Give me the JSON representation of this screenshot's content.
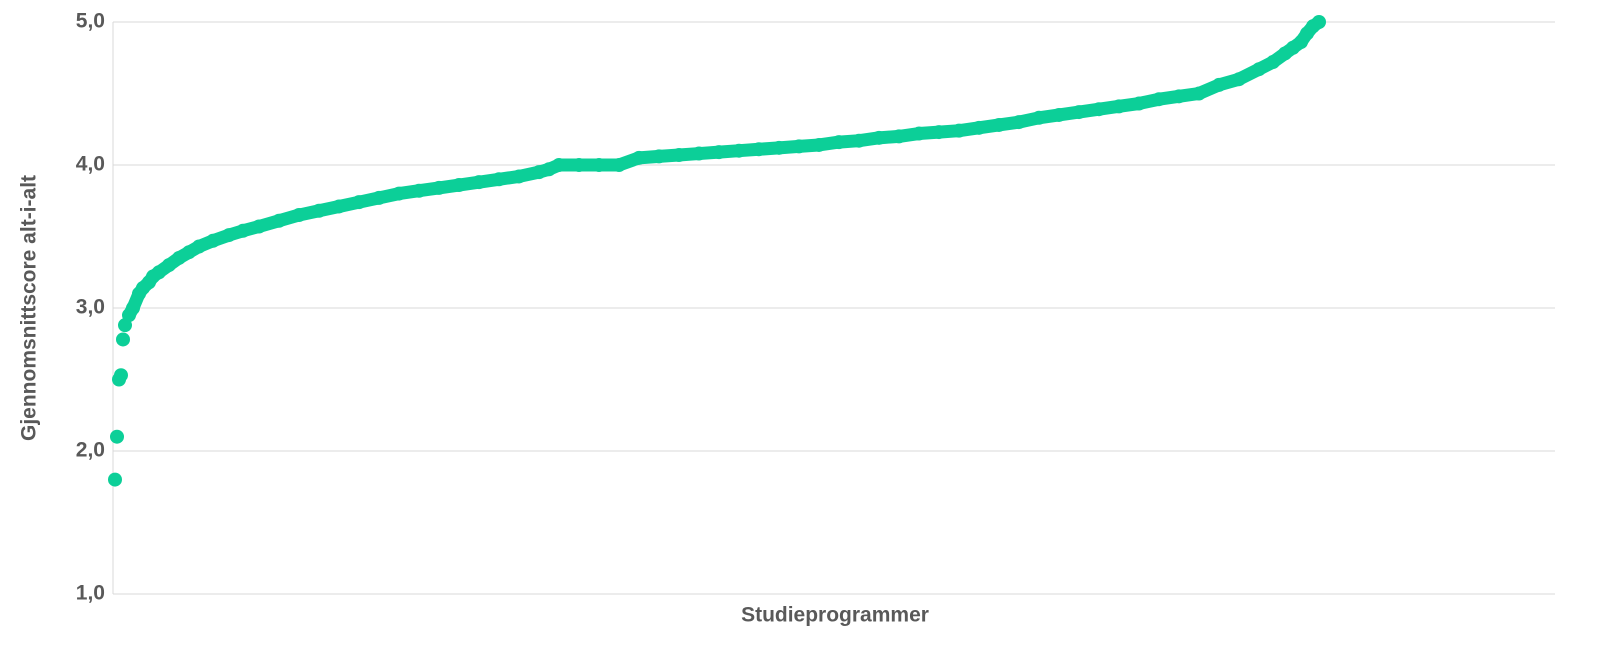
{
  "chart_data": {
    "type": "scatter",
    "x_label": "Studieprogrammer",
    "y_label": "Gjennomsnittscore alt-i-alt",
    "color": "#0ccf98",
    "grid": true,
    "xlim": [
      0,
      721
    ],
    "ylim": [
      1,
      5
    ],
    "yticks": [
      {
        "value": 1,
        "label": "1,0"
      },
      {
        "value": 2,
        "label": "2,0"
      },
      {
        "value": 3,
        "label": "3,0"
      },
      {
        "value": 4,
        "label": "4,0"
      },
      {
        "value": 5,
        "label": "5,0"
      }
    ],
    "x": [
      1,
      2,
      3,
      4,
      5,
      6,
      8,
      10,
      13,
      15,
      18,
      20,
      23,
      28,
      33,
      38,
      43,
      50,
      58,
      65,
      73,
      83,
      93,
      103,
      113,
      123,
      133,
      143,
      153,
      163,
      173,
      183,
      193,
      203,
      213,
      218,
      223,
      233,
      243,
      253,
      263,
      273,
      283,
      293,
      303,
      313,
      323,
      333,
      343,
      353,
      363,
      373,
      383,
      393,
      403,
      413,
      423,
      433,
      443,
      453,
      463,
      473,
      483,
      493,
      503,
      513,
      523,
      533,
      543,
      553,
      563,
      573,
      580,
      586,
      590,
      594,
      597,
      600,
      603
    ],
    "values": [
      1.8,
      2.1,
      2.5,
      2.53,
      2.78,
      2.88,
      2.95,
      3.0,
      3.1,
      3.14,
      3.18,
      3.22,
      3.25,
      3.3,
      3.35,
      3.39,
      3.43,
      3.47,
      3.51,
      3.54,
      3.57,
      3.61,
      3.65,
      3.68,
      3.71,
      3.74,
      3.77,
      3.8,
      3.82,
      3.84,
      3.86,
      3.88,
      3.9,
      3.92,
      3.95,
      3.97,
      4.0,
      4.0,
      4.0,
      4.0,
      4.05,
      4.06,
      4.07,
      4.08,
      4.09,
      4.1,
      4.11,
      4.12,
      4.13,
      4.14,
      4.16,
      4.17,
      4.19,
      4.2,
      4.22,
      4.23,
      4.24,
      4.26,
      4.28,
      4.3,
      4.33,
      4.35,
      4.37,
      4.39,
      4.41,
      4.43,
      4.46,
      4.48,
      4.5,
      4.56,
      4.6,
      4.67,
      4.72,
      4.78,
      4.82,
      4.86,
      4.92,
      4.97,
      5.0
    ]
  }
}
